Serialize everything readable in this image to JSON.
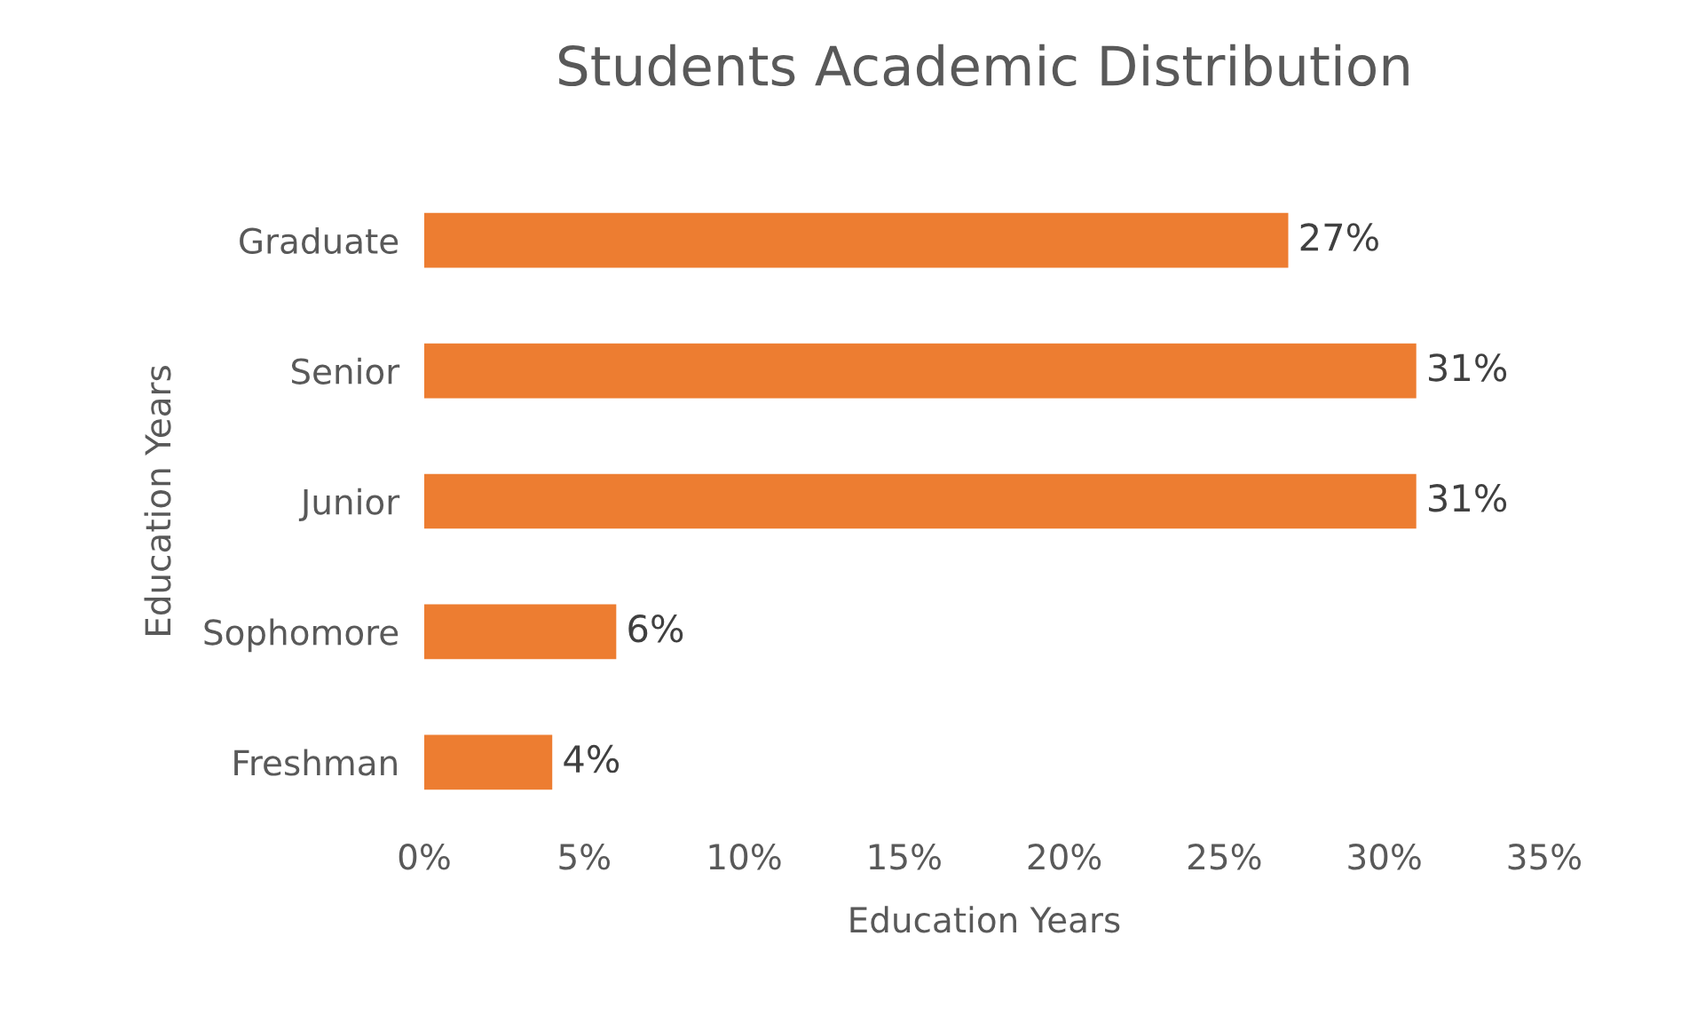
{
  "chart_data": {
    "type": "bar",
    "orientation": "horizontal",
    "title": "Students Academic Distribution",
    "xlabel": "Education Years",
    "ylabel": "Education Years",
    "categories": [
      "Graduate",
      "Senior",
      "Junior",
      "Sophomore",
      "Freshman"
    ],
    "values": [
      27,
      31,
      31,
      6,
      4
    ],
    "value_labels": [
      "27%",
      "31%",
      "31%",
      "6%",
      "4%"
    ],
    "color": "#ed7d31",
    "xlim": [
      0,
      35
    ],
    "xticks": [
      {
        "value": 0,
        "label": "0%"
      },
      {
        "value": 5,
        "label": "5%"
      },
      {
        "value": 10,
        "label": "10%"
      },
      {
        "value": 15,
        "label": "15%"
      },
      {
        "value": 20,
        "label": "20%"
      },
      {
        "value": 25,
        "label": "25%"
      },
      {
        "value": 30,
        "label": "30%"
      },
      {
        "value": 35,
        "label": "35%"
      }
    ],
    "grid": false,
    "legend": false
  }
}
